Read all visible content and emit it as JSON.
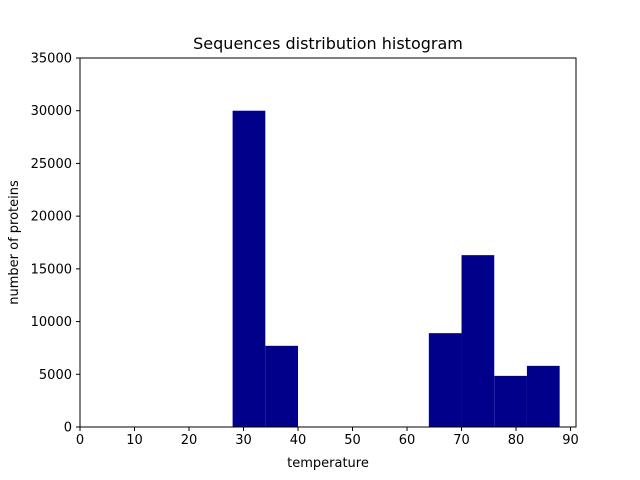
{
  "chart_data": {
    "type": "bar",
    "title": "Sequences distribution histogram",
    "xlabel": "temperature",
    "ylabel": "number of proteins",
    "xlim": [
      0,
      91
    ],
    "ylim": [
      0,
      35000
    ],
    "xticks": [
      0,
      10,
      20,
      30,
      40,
      50,
      60,
      70,
      80,
      90
    ],
    "yticks": [
      0,
      5000,
      10000,
      15000,
      20000,
      25000,
      30000,
      35000
    ],
    "grid": false,
    "bar_color": "#00008b",
    "bins": [
      {
        "x0": 28,
        "x1": 34,
        "value": 30000
      },
      {
        "x0": 34,
        "x1": 40,
        "value": 7700
      },
      {
        "x0": 40,
        "x1": 46,
        "value": 0
      },
      {
        "x0": 46,
        "x1": 52,
        "value": 0
      },
      {
        "x0": 52,
        "x1": 58,
        "value": 0
      },
      {
        "x0": 58,
        "x1": 64,
        "value": 0
      },
      {
        "x0": 64,
        "x1": 70,
        "value": 8900
      },
      {
        "x0": 70,
        "x1": 76,
        "value": 16300
      },
      {
        "x0": 76,
        "x1": 82,
        "value": 4850
      },
      {
        "x0": 82,
        "x1": 88,
        "value": 5800
      }
    ]
  }
}
